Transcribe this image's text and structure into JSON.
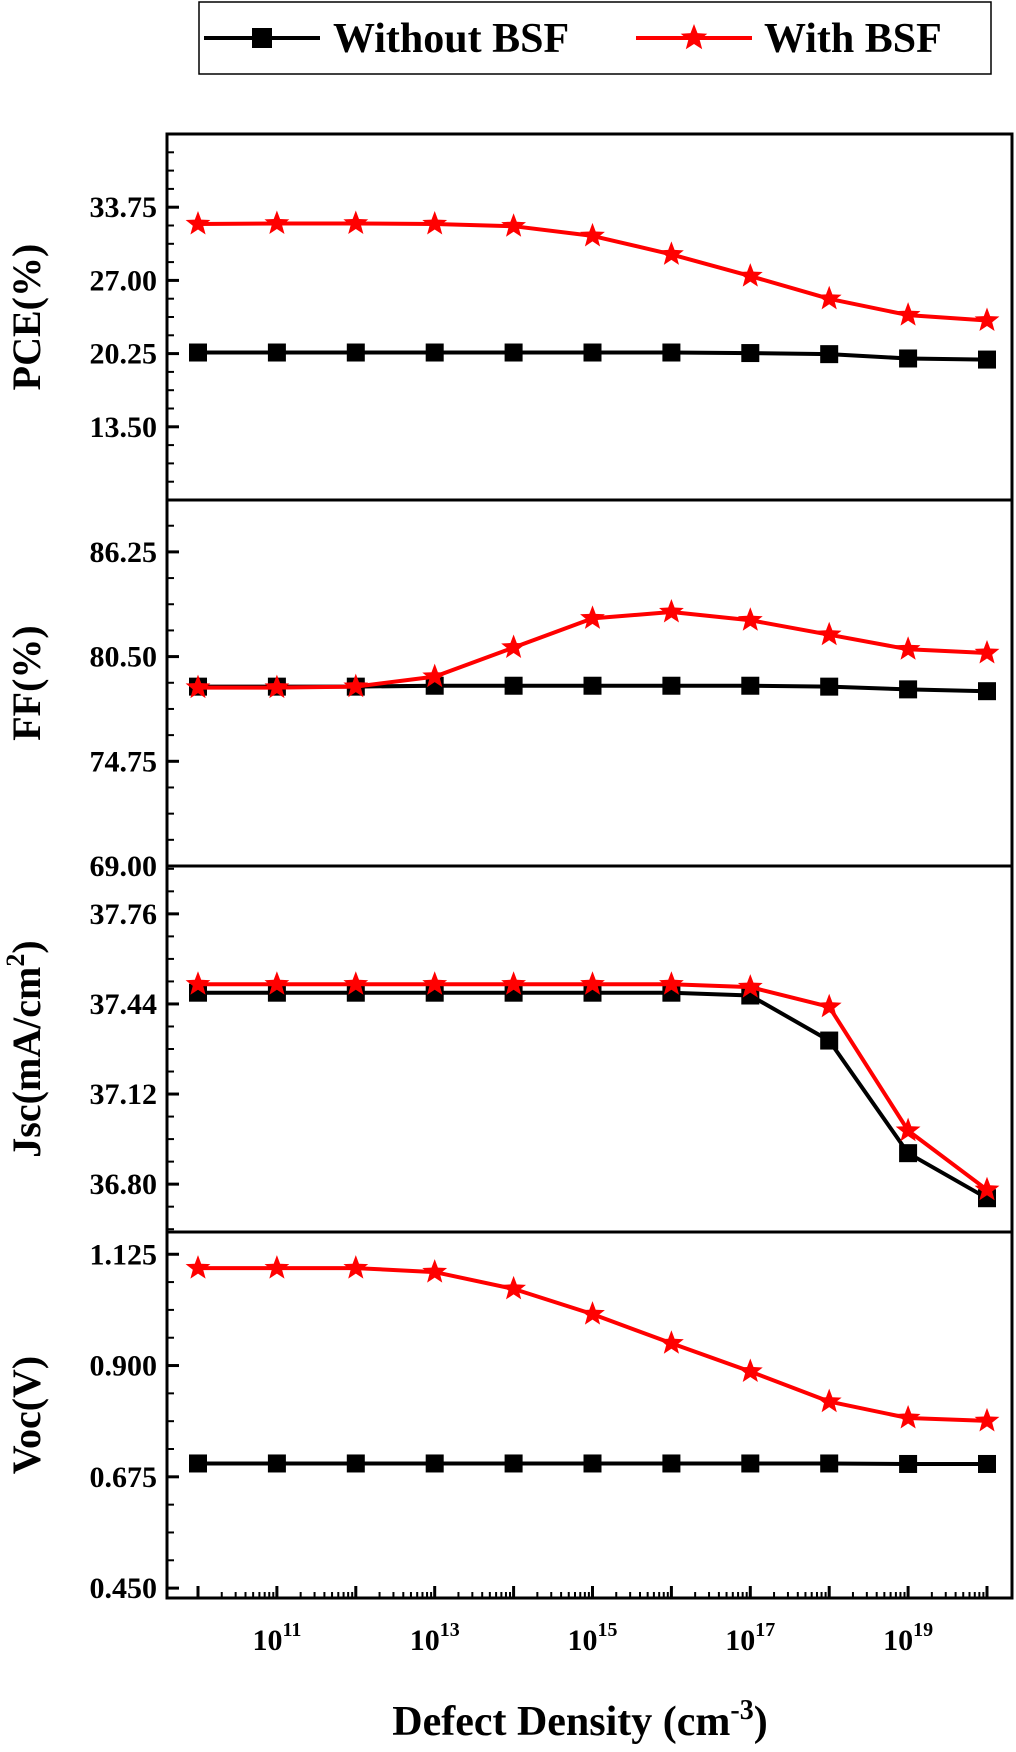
{
  "legend": {
    "position": "top",
    "entries": [
      {
        "label": "Without BSF",
        "color": "#000000",
        "marker": "square"
      },
      {
        "label": "With BSF",
        "color": "#ff0000",
        "marker": "star"
      }
    ]
  },
  "xaxis": {
    "label": "Defect Density (cm",
    "label_sup": "-3",
    "label_close": ")",
    "scale": "log",
    "tick_base": "10",
    "tick_exponents": [
      "11",
      "13",
      "15",
      "17",
      "19"
    ]
  },
  "chart_data": [
    {
      "type": "line",
      "ylabel": "PCE(%)",
      "ylabel_sup": "",
      "ylabel_close": "",
      "ylim": [
        6.75,
        40.5
      ],
      "yticks": [
        "13.50",
        "20.25",
        "27.00",
        "33.75"
      ],
      "x": [
        "1e10",
        "1e11",
        "1e12",
        "1e13",
        "1e14",
        "1e15",
        "1e16",
        "1e17",
        "1e18",
        "1e19",
        "1e20"
      ],
      "series": [
        {
          "name": "Without BSF",
          "values": [
            20.35,
            20.35,
            20.35,
            20.35,
            20.35,
            20.35,
            20.35,
            20.3,
            20.2,
            19.8,
            19.7
          ]
        },
        {
          "name": "With BSF",
          "values": [
            32.2,
            32.25,
            32.25,
            32.2,
            32.0,
            31.1,
            29.4,
            27.4,
            25.3,
            23.8,
            23.3
          ]
        }
      ]
    },
    {
      "type": "line",
      "ylabel": "FF(%)",
      "ylabel_sup": "",
      "ylabel_close": "",
      "ylim": [
        69.0,
        89.1
      ],
      "yticks": [
        "69.00",
        "74.75",
        "80.50",
        "86.25"
      ],
      "x": [
        "1e10",
        "1e11",
        "1e12",
        "1e13",
        "1e14",
        "1e15",
        "1e16",
        "1e17",
        "1e18",
        "1e19",
        "1e20"
      ],
      "series": [
        {
          "name": "Without BSF",
          "values": [
            78.85,
            78.85,
            78.85,
            78.9,
            78.9,
            78.9,
            78.9,
            78.9,
            78.85,
            78.7,
            78.6
          ]
        },
        {
          "name": "With BSF",
          "values": [
            78.8,
            78.8,
            78.85,
            79.4,
            81.0,
            82.6,
            82.95,
            82.5,
            81.7,
            80.9,
            80.7
          ]
        }
      ]
    },
    {
      "type": "line",
      "ylabel": "Jsc(mA/cm",
      "ylabel_sup": "2",
      "ylabel_close": ")",
      "ylim": [
        36.63,
        37.93
      ],
      "yticks": [
        "36.80",
        "37.12",
        "37.44",
        "37.76"
      ],
      "x": [
        "1e10",
        "1e11",
        "1e12",
        "1e13",
        "1e14",
        "1e15",
        "1e16",
        "1e17",
        "1e18",
        "1e19",
        "1e20"
      ],
      "series": [
        {
          "name": "Without BSF",
          "values": [
            37.48,
            37.48,
            37.48,
            37.48,
            37.48,
            37.48,
            37.48,
            37.47,
            37.31,
            36.91,
            36.75
          ]
        },
        {
          "name": "With BSF",
          "values": [
            37.51,
            37.51,
            37.51,
            37.51,
            37.51,
            37.51,
            37.51,
            37.5,
            37.43,
            36.99,
            36.78
          ]
        }
      ]
    },
    {
      "type": "line",
      "ylabel": "Voc(V)",
      "ylabel_sup": "",
      "ylabel_close": "",
      "ylim": [
        0.43,
        1.17
      ],
      "yticks": [
        "0.450",
        "0.675",
        "0.900",
        "1.125"
      ],
      "x": [
        "1e10",
        "1e11",
        "1e12",
        "1e13",
        "1e14",
        "1e15",
        "1e16",
        "1e17",
        "1e18",
        "1e19",
        "1e20"
      ],
      "series": [
        {
          "name": "Without BSF",
          "values": [
            0.702,
            0.702,
            0.702,
            0.702,
            0.702,
            0.702,
            0.702,
            0.702,
            0.702,
            0.701,
            0.701
          ]
        },
        {
          "name": "With BSF",
          "values": [
            1.097,
            1.097,
            1.097,
            1.089,
            1.055,
            1.004,
            0.945,
            0.888,
            0.827,
            0.794,
            0.788
          ]
        }
      ]
    }
  ]
}
